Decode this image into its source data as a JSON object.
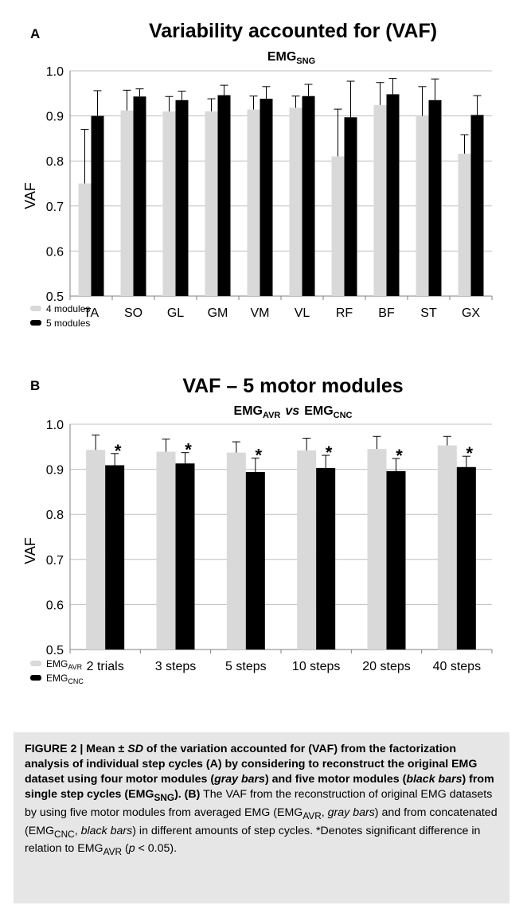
{
  "chart_data": [
    {
      "panel": "A",
      "type": "bar",
      "title": "Variability accounted for (VAF)",
      "subtitle_base": "EMG",
      "subtitle_sub": "SNG",
      "ylabel": "VAF",
      "ylim": [
        0.5,
        1.0
      ],
      "yticks": [
        "0.5",
        "0.6",
        "0.7",
        "0.8",
        "0.9",
        "1.0"
      ],
      "grid": true,
      "legend_position": "bottom-left",
      "categories": [
        "TA",
        "SO",
        "GL",
        "GM",
        "VM",
        "VL",
        "RF",
        "BF",
        "ST",
        "GX"
      ],
      "series": [
        {
          "name": "4 modules",
          "color": "#d9d9d9",
          "values": [
            0.75,
            0.912,
            0.91,
            0.91,
            0.914,
            0.918,
            0.81,
            0.924,
            0.9,
            0.816
          ],
          "errors": [
            0.12,
            0.045,
            0.033,
            0.028,
            0.03,
            0.026,
            0.105,
            0.05,
            0.065,
            0.042
          ]
        },
        {
          "name": "5 modules",
          "color": "#000000",
          "values": [
            0.9,
            0.943,
            0.935,
            0.946,
            0.938,
            0.944,
            0.897,
            0.948,
            0.935,
            0.902
          ],
          "errors": [
            0.056,
            0.017,
            0.02,
            0.022,
            0.027,
            0.026,
            0.08,
            0.035,
            0.047,
            0.043
          ]
        }
      ]
    },
    {
      "panel": "B",
      "type": "bar",
      "title": "VAF – 5 motor modules",
      "subtitle_parts": [
        "EMG",
        "AVR",
        "vs",
        "EMG",
        "CNC"
      ],
      "ylabel": "VAF",
      "ylim": [
        0.5,
        1.0
      ],
      "yticks": [
        "0.5",
        "0.6",
        "0.7",
        "0.8",
        "0.9",
        "1.0"
      ],
      "grid": true,
      "legend_position": "bottom-left",
      "categories": [
        "2 trials",
        "3 steps",
        "5 steps",
        "10 steps",
        "20 steps",
        "40 steps"
      ],
      "significance_marker": "*",
      "series": [
        {
          "name_base": "EMG",
          "name_sub": "AVR",
          "color": "#d9d9d9",
          "values": [
            0.943,
            0.939,
            0.937,
            0.942,
            0.945,
            0.953
          ],
          "errors": [
            0.033,
            0.028,
            0.024,
            0.027,
            0.028,
            0.02
          ]
        },
        {
          "name_base": "EMG",
          "name_sub": "CNC",
          "color": "#000000",
          "values": [
            0.909,
            0.913,
            0.894,
            0.903,
            0.896,
            0.905
          ],
          "errors": [
            0.026,
            0.024,
            0.031,
            0.028,
            0.028,
            0.024
          ]
        }
      ]
    }
  ],
  "caption": {
    "figure_label": "FIGURE 2 | ",
    "bold_lead_1": "Mean ± ",
    "bold_lead_sd": "SD",
    "bold_lead_2": " of the variation accounted for (VAF) from the factorization analysis of individual step cycles (A) by considering to reconstruct the original EMG dataset using four motor modules (",
    "bold_gray_bars": "gray bars",
    "bold_lead_3": ") and five motor modules (",
    "bold_black_bars": "black bars",
    "bold_lead_4": ") from single step cycles (EMG",
    "bold_sng": "SNG",
    "bold_lead_5": "). (B)",
    "text_1": " The VAF from the reconstruction of original EMG datasets by using five motor modules from averaged EMG (EMG",
    "sub_avr": "AVR",
    "text_2": ", ",
    "gray_bars": "gray bars",
    "text_3": ") and from concatenated (EMG",
    "sub_cnc": "CNC",
    "text_4": ", ",
    "black_bars": "black bars",
    "text_5": ") in different amounts of step cycles. *Denotes significant difference in relation to EMG",
    "sub_avr2": "AVR",
    "text_6": " (",
    "p": "p",
    "text_7": " < 0.05)."
  }
}
